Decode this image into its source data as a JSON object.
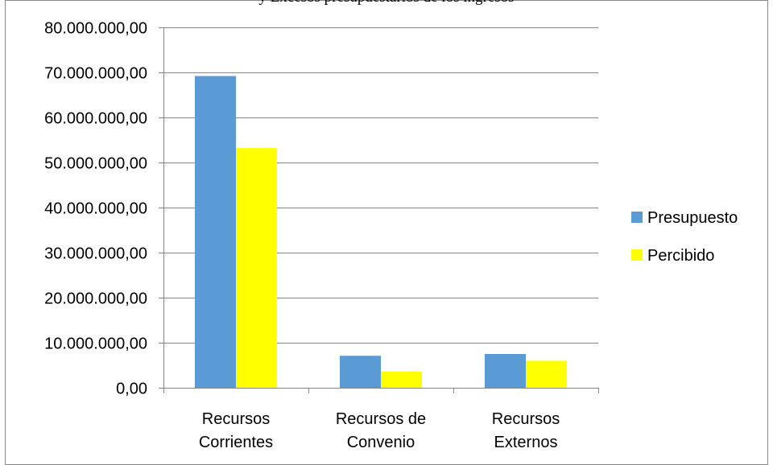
{
  "page": {
    "cropped_heading": "y Excesos presupuestarios de los ingresos"
  },
  "chart_data": {
    "type": "bar",
    "title": "",
    "xlabel": "",
    "ylabel": "",
    "categories": [
      [
        "Recursos",
        "Corrientes"
      ],
      [
        "Recursos de",
        "Convenio"
      ],
      [
        "Recursos",
        "Externos"
      ]
    ],
    "series": [
      {
        "name": "Presupuesto",
        "color": "#5B9BD5",
        "values": [
          69200000,
          7100000,
          7500000
        ]
      },
      {
        "name": "Percibido",
        "color": "#FFFF00",
        "values": [
          53200000,
          3600000,
          6000000
        ]
      }
    ],
    "ylim": [
      0,
      80000000
    ],
    "yticks": [
      0,
      10000000,
      20000000,
      30000000,
      40000000,
      50000000,
      60000000,
      70000000,
      80000000
    ],
    "ytick_labels": [
      "0,00",
      "10.000.000,00",
      "20.000.000,00",
      "30.000.000,00",
      "40.000.000,00",
      "50.000.000,00",
      "60.000.000,00",
      "70.000.000,00",
      "80.000.000,00"
    ],
    "grid": true,
    "legend_position": "right"
  }
}
